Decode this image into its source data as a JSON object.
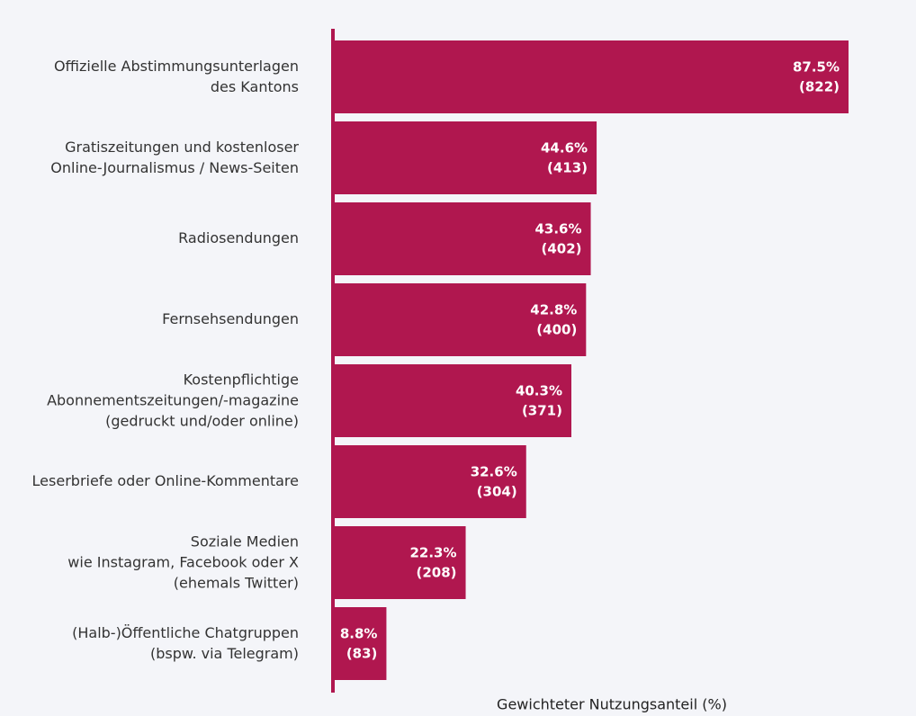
{
  "chart_data": {
    "type": "bar",
    "orientation": "horizontal",
    "x_label": "Gewichteter Nutzungsanteil (%)",
    "categories": [
      "Offizielle Abstimmungsunterlagen\ndes Kantons",
      "Gratiszeitungen und kostenloser\nOnline-Journalismus / News-Seiten",
      "Radiosendungen",
      "Fernsehsendungen",
      "Kostenpflichtige\nAbonnementszeitungen/-magazine\n(gedruckt und/oder online)",
      "Leserbriefe oder Online-Kommentare",
      "Soziale Medien\nwie Instagram, Facebook oder X\n(ehemals Twitter)",
      "(Halb-)Öffentliche Chatgruppen\n(bspw. via Telegram)"
    ],
    "values": [
      87.5,
      44.6,
      43.6,
      42.8,
      40.3,
      32.6,
      22.3,
      8.8
    ],
    "value_labels": [
      "87.5%\n(822)",
      "44.6%\n(413)",
      "43.6%\n(402)",
      "42.8%\n(400)",
      "40.3%\n(371)",
      "32.6%\n(304)",
      "22.3%\n(208)",
      "8.8%\n(83)"
    ],
    "color": "#b0174f",
    "xlim": [
      0,
      96
    ]
  }
}
